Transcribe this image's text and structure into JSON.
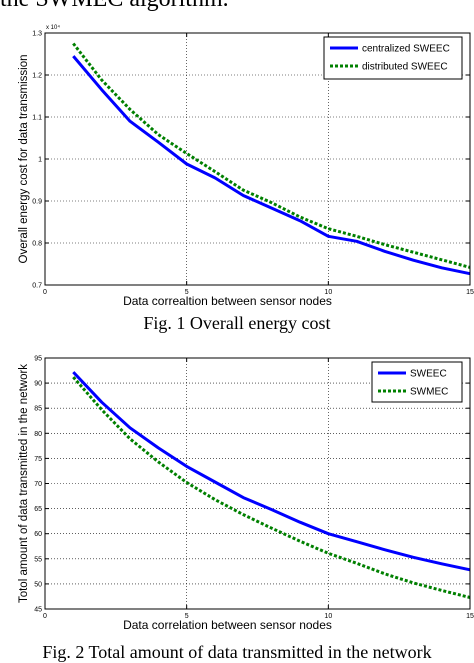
{
  "header_text": "the SWMEC algorithm.",
  "figures": [
    {
      "caption": "Fig. 1   Overall energy cost"
    },
    {
      "caption": "Fig. 2   Total amount of data transmitted in the network"
    }
  ],
  "chart_data": [
    {
      "type": "line",
      "title": "",
      "xlabel": "Data correaltion between sensor nodes",
      "ylabel": "Overall energy cost for data transmission",
      "xlim": [
        0,
        15
      ],
      "ylim": [
        7000,
        13000
      ],
      "y_multiplier_label": "x 10⁴",
      "x_ticks": [
        0,
        5,
        10,
        15
      ],
      "y_ticks": [
        0.7,
        0.8,
        0.9,
        1,
        1.1,
        1.2,
        1.3
      ],
      "y_tick_scale": 10000,
      "grid": true,
      "legend_position": "top-right",
      "series": [
        {
          "name": "centralized SWEEC",
          "color": "#0000ff",
          "style": "solid",
          "x": [
            1,
            2,
            3,
            4,
            5,
            6,
            7,
            8,
            9,
            10,
            11,
            12,
            13,
            14,
            15
          ],
          "y": [
            12450,
            11650,
            10900,
            10400,
            9880,
            9550,
            9130,
            8830,
            8530,
            8160,
            8040,
            7800,
            7590,
            7410,
            7270
          ]
        },
        {
          "name": "distributed SWEEC",
          "color": "#008000",
          "style": "dotted",
          "x": [
            1,
            2,
            3,
            4,
            5,
            6,
            7,
            8,
            9,
            10,
            11,
            12,
            13,
            14,
            15
          ],
          "y": [
            12750,
            11880,
            11180,
            10580,
            10130,
            9700,
            9260,
            8960,
            8620,
            8340,
            8160,
            7960,
            7780,
            7600,
            7420
          ]
        }
      ]
    },
    {
      "type": "line",
      "title": "",
      "xlabel": "Data correlation between sensor nodes",
      "ylabel": "Totol amount of data transmitted in the network",
      "xlim": [
        0,
        15
      ],
      "ylim": [
        45,
        95
      ],
      "x_ticks": [
        0,
        5,
        10,
        15
      ],
      "y_ticks": [
        45,
        50,
        55,
        60,
        65,
        70,
        75,
        80,
        85,
        90,
        95
      ],
      "y_tick_scale": 1,
      "grid": true,
      "legend_position": "top-right",
      "series": [
        {
          "name": "SWEEC",
          "color": "#0000ff",
          "style": "solid",
          "x": [
            1,
            2,
            3,
            4,
            5,
            6,
            7,
            8,
            9,
            10,
            11,
            12,
            13,
            14,
            15
          ],
          "y": [
            92.2,
            86.2,
            81.1,
            77.1,
            73.4,
            70.3,
            67.2,
            64.8,
            62.3,
            60.0,
            58.4,
            56.8,
            55.3,
            54.0,
            52.8
          ]
        },
        {
          "name": "SWMEC",
          "color": "#008000",
          "style": "dotted",
          "x": [
            1,
            2,
            3,
            4,
            5,
            6,
            7,
            8,
            9,
            10,
            11,
            12,
            13,
            14,
            15
          ],
          "y": [
            91.2,
            84.7,
            78.9,
            74.3,
            70.2,
            66.8,
            63.8,
            61.1,
            58.5,
            56.1,
            54.1,
            52.0,
            50.2,
            48.7,
            47.3
          ]
        }
      ]
    }
  ]
}
